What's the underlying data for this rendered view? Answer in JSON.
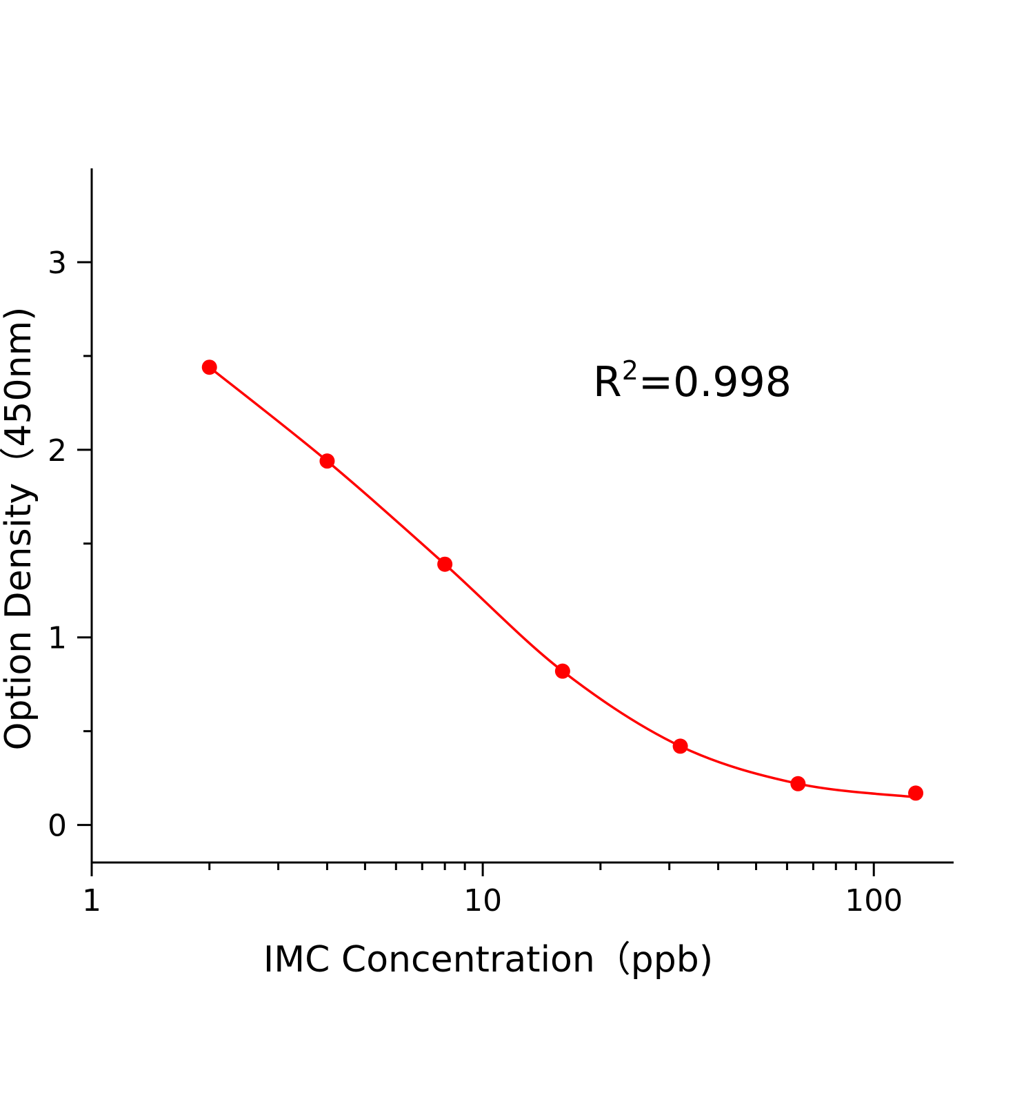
{
  "chart_data": {
    "type": "scatter",
    "xlabel": "IMC Concentration（ppb)",
    "ylabel": "Option Density（450nm)",
    "x_scale": "log",
    "xlim": [
      1,
      160
    ],
    "ylim": [
      -0.2,
      3.5
    ],
    "x_ticks": [
      "1",
      "10",
      "100"
    ],
    "y_ticks": [
      "0",
      "1",
      "2",
      "3"
    ],
    "grid": false,
    "annotation": {
      "base": "R",
      "sup": "2",
      "rest": "=0.998"
    },
    "color": "#ff0000",
    "series": [
      {
        "x": [
          2,
          4,
          8,
          16,
          32,
          64,
          128
        ],
        "y": [
          2.44,
          1.94,
          1.39,
          0.82,
          0.42,
          0.22,
          0.17
        ],
        "fit_curve": true
      }
    ]
  }
}
